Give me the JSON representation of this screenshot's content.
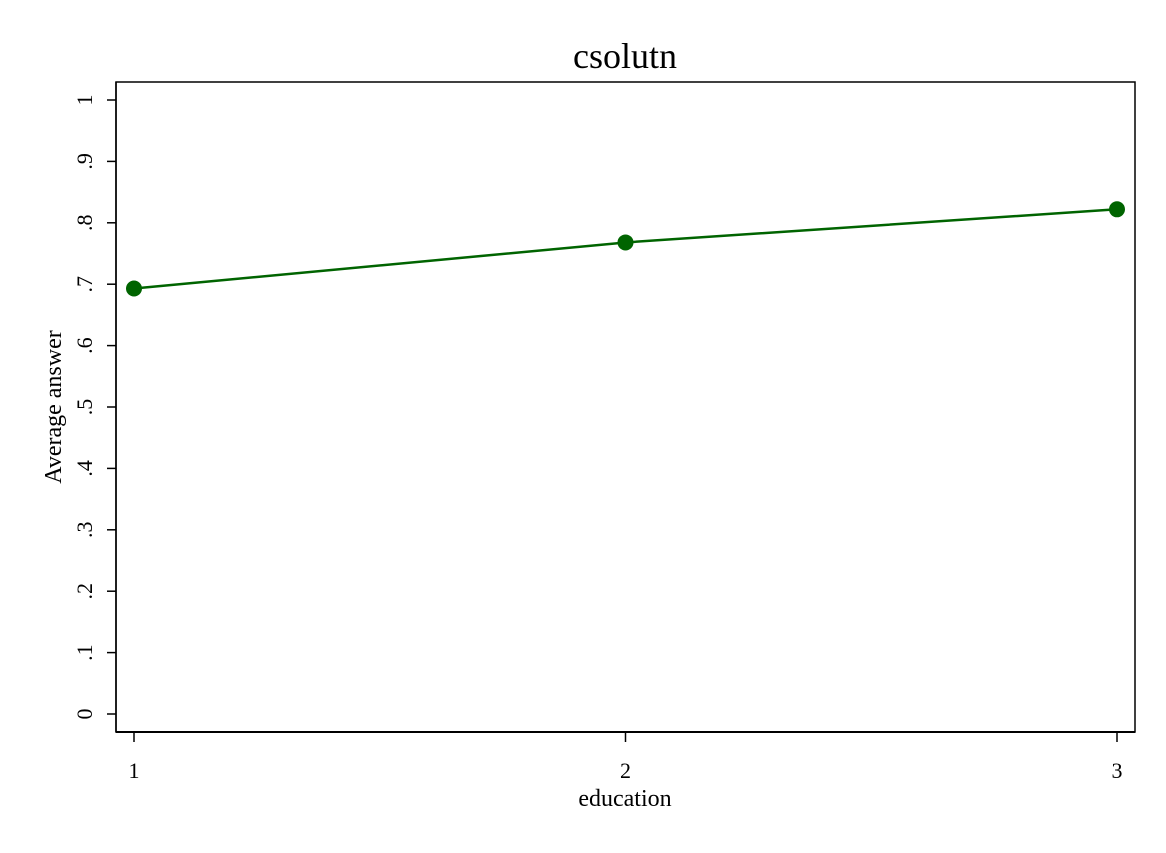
{
  "chart_data": {
    "type": "line",
    "title": "csolutn",
    "xlabel": "education",
    "ylabel": "Average answer",
    "x": [
      1,
      2,
      3
    ],
    "x_tick_labels": [
      "1",
      "2",
      "3"
    ],
    "y_ticks": [
      0,
      0.1,
      0.2,
      0.3,
      0.4,
      0.5,
      0.6,
      0.7,
      0.8,
      0.9,
      1
    ],
    "y_tick_labels": [
      "0",
      ".1",
      ".2",
      ".3",
      ".4",
      ".5",
      ".6",
      ".7",
      ".8",
      ".9",
      "1"
    ],
    "ylim": [
      0,
      1
    ],
    "xlim": [
      1,
      3
    ],
    "grid": false,
    "series": [
      {
        "values": [
          0.693,
          0.768,
          0.822
        ],
        "color": "#006400"
      }
    ]
  }
}
